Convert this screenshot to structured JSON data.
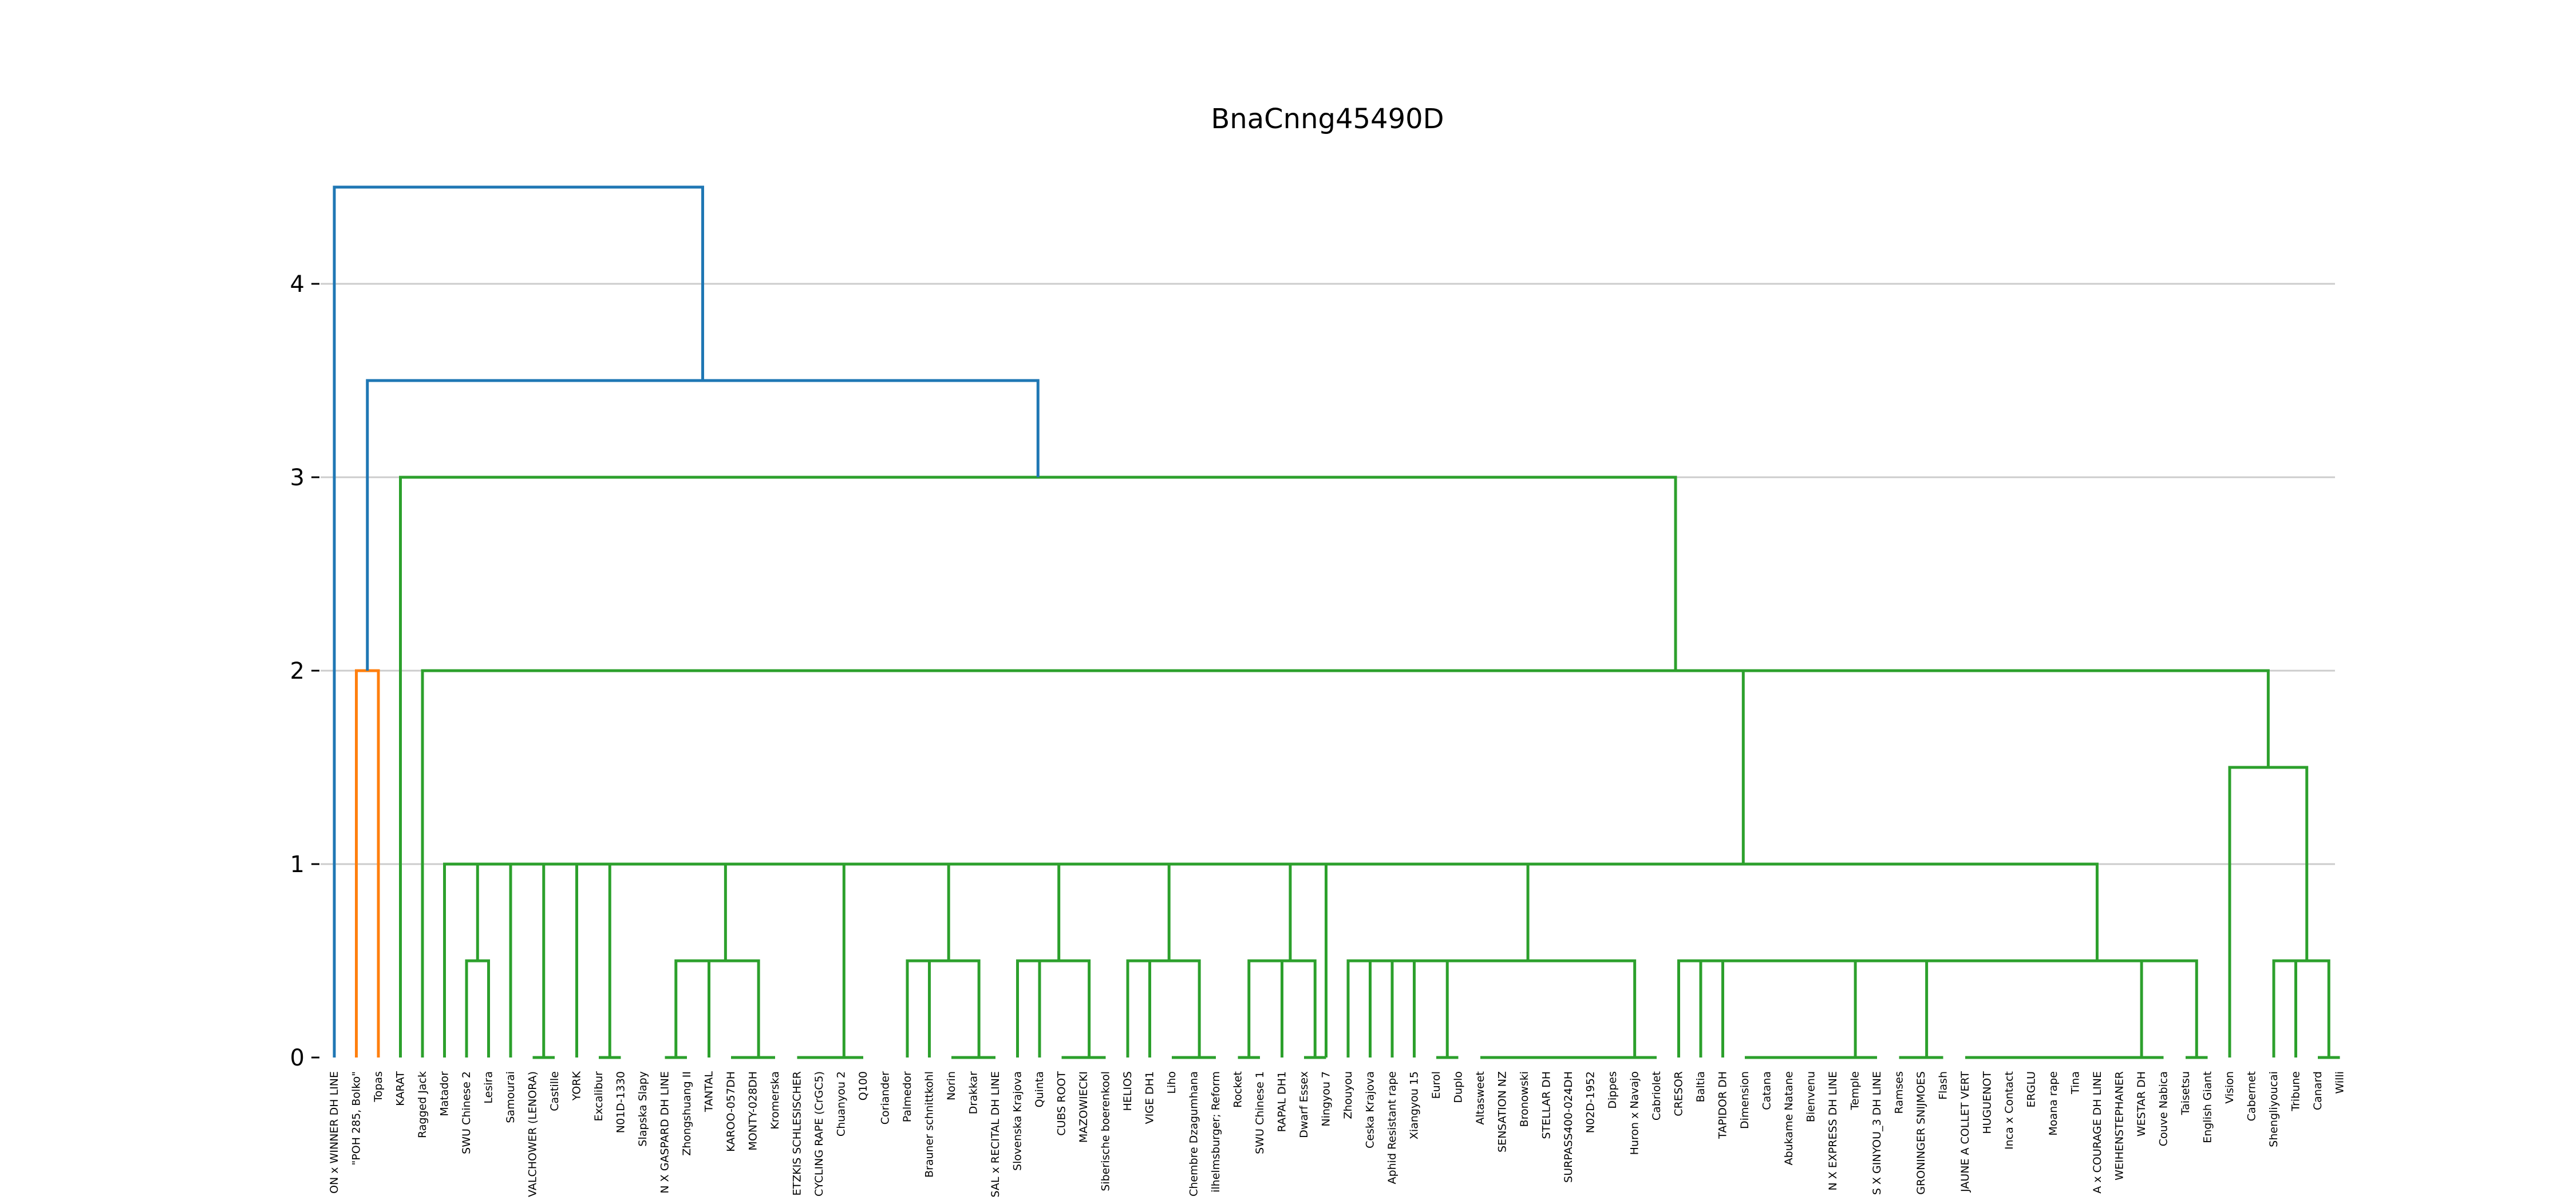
{
  "chart_data": {
    "type": "dendrogram",
    "title": "BnaCnng45490D",
    "xlabel": "",
    "ylabel": "",
    "ylim": [
      0,
      4.5
    ],
    "yticks": [
      "0",
      "1",
      "2",
      "3",
      "4"
    ],
    "grid": "horizontal",
    "colors": {
      "blue": "#1f77b4",
      "orange": "#ff7f0e",
      "green": "#2ca02c"
    },
    "leaves": [
      "ON x WINNER DH LINE",
      "\"POH 285, Bolko\"",
      "Topas",
      "KARAT",
      "Ragged Jack",
      "Matador",
      "SWU Chinese 2",
      "Lesira",
      "Samourai",
      "VALCHOWER (LENORA)",
      "Castille",
      "YORK",
      "Excalibur",
      "N01D-1330",
      "Slapska Slapy",
      "N X GASPARD DH LINE",
      "Zhongshuang II",
      "TANTAL",
      "KAROO-057DH",
      "MONTY-028DH",
      "Kromerska",
      "ETZKIS SCHLESISCHER",
      "CYCLING RAPE (CrGC5)",
      "Chuanyou 2",
      "Q100",
      "Coriander",
      "Palmedor",
      "Brauner schnittkohl",
      "Norin",
      "Drakkar",
      "SAL x RECITAL DH LINE",
      "Slovenska Krajova",
      "Quinta",
      "CUBS ROOT",
      "MAZOWIECKI",
      "Siberische boerenkool",
      "HELIOS",
      "VIGE DH1",
      "Liho",
      "Chembre Dzagumhana",
      "ilhelmsburger; Reform",
      "Rocket",
      "SWU Chinese 1",
      "RAPAL DH1",
      "Dwarf Essex",
      "Ningyou 7",
      "Zhouyou",
      "Ceska Krajova",
      "Aphid Resistant rape",
      "Xiangyou 15",
      "Eurol",
      "Duplo",
      "Altasweet",
      "SENSATION NZ",
      "Bronowski",
      "STELLAR DH",
      "SURPASS400-024DH",
      "N02D-1952",
      "Dippes",
      "Huron x Navajo",
      "Cabriolet",
      "CRESOR",
      "Baltia",
      "TAPIDOR DH",
      "Dimension",
      "Catana",
      "Abukame Natane",
      "Bienvenu",
      "N X EXPRESS DH LINE",
      "Temple",
      "S X GINYOU_3 DH LINE",
      "Ramses",
      "GRONINGER SNIJMOES",
      "Flash",
      "JAUNE A COLLET VERT",
      "HUGUENOT",
      "Inca x Contact",
      "ERGLU",
      "Moana rape",
      "Tina",
      "A x COURAGE DH LINE",
      "WEIHENSTEPHANER",
      "WESTAR DH",
      "Couve Nabica",
      "Taisetsu",
      "English Giant",
      "Vision",
      "Cabernet",
      "Shengliyoucai",
      "Tribune",
      "Canard",
      "Willi"
    ],
    "merges": [
      [
        0,
        1.0,
        0.5,
        "green"
      ],
      [
        0,
        1.0,
        0.5,
        "green"
      ],
      [
        0,
        1.0,
        0.5,
        "green"
      ],
      [
        0,
        2.0,
        0.5,
        "green"
      ],
      [
        0,
        2.0,
        1.0,
        "green"
      ],
      [
        0,
        2.0,
        2.0,
        "green"
      ],
      [
        0,
        2.0,
        0.5,
        "green"
      ],
      [
        0,
        1.0,
        0.5,
        "green"
      ],
      [
        0,
        3.0,
        0.5,
        "green"
      ],
      [
        0,
        4.0,
        0.5,
        "green"
      ],
      [
        0,
        3.0,
        0.5,
        "green"
      ],
      [
        0,
        4.0,
        0.5,
        "green"
      ],
      [
        0,
        5.0,
        0.5,
        "green"
      ],
      [
        0,
        6.0,
        0.5,
        "green"
      ],
      [
        0,
        7.0,
        0.5,
        "green"
      ],
      [
        0,
        8.0,
        0.5,
        "green"
      ],
      [
        0,
        9.0,
        0.5,
        "green"
      ],
      [
        0,
        10.0,
        0.5,
        "green"
      ],
      [
        0,
        11.0,
        0.5,
        "green"
      ],
      [
        0,
        12.0,
        0.5,
        "green"
      ],
      [
        0,
        13.0,
        0.5,
        "green"
      ],
      [
        0,
        14.0,
        0.5,
        "green"
      ],
      [
        0,
        15.0,
        0.5,
        "green"
      ],
      [
        0,
        16.0,
        0.5,
        "green"
      ],
      [
        0,
        1.0,
        0.5,
        "green"
      ],
      [
        0,
        2.0,
        0.5,
        "green"
      ],
      [
        0,
        3.0,
        0.5,
        "green"
      ],
      [
        0,
        4.0,
        0.5,
        "green"
      ],
      [
        0,
        5.0,
        0.5,
        "green"
      ],
      [
        0,
        6.0,
        0.5,
        "green"
      ],
      [
        0,
        7.0,
        0.5,
        "green"
      ],
      [
        0,
        8.0,
        0.5,
        "green"
      ],
      [
        0,
        9.0,
        0.5,
        "green"
      ],
      [
        0,
        1.0,
        0.5,
        "green"
      ],
      [
        0,
        2.0,
        0.5,
        "green"
      ],
      [
        0,
        3.0,
        0.5,
        "green"
      ],
      [
        0,
        4.0,
        0.5,
        "green"
      ],
      [
        0,
        5.0,
        0.5,
        "green"
      ],
      [
        0,
        1.0,
        0.5,
        "green"
      ],
      [
        0,
        2.0,
        0.5,
        "green"
      ],
      [
        0,
        3.0,
        0.5,
        "green"
      ],
      [
        0,
        4.0,
        0.5,
        "green"
      ],
      [
        0,
        5.0,
        0.5,
        "green"
      ],
      [
        0,
        6.0,
        0.5,
        "green"
      ],
      [
        0,
        7.0,
        0.5,
        "green"
      ],
      [
        0,
        8.0,
        0.5,
        "green"
      ],
      [
        0,
        9.0,
        0.5,
        "green"
      ],
      [
        0,
        10.0,
        0.5,
        "green"
      ],
      [
        0,
        1.0,
        0.5,
        "green"
      ],
      [
        0,
        2.0,
        0.5,
        "green"
      ],
      [
        0,
        3.0,
        0.5,
        "green"
      ],
      [
        0,
        4.0,
        0.5,
        "green"
      ],
      [
        0,
        1.0,
        0.5,
        "green"
      ],
      [
        0,
        2.0,
        0.5,
        "green"
      ],
      [
        0,
        3.0,
        0.5,
        "green"
      ],
      [
        0,
        4.0,
        0.5,
        "green"
      ],
      [
        0,
        5.0,
        0.5,
        "green"
      ],
      [
        0,
        6.0,
        0.5,
        "green"
      ],
      [
        0,
        7.0,
        0.5,
        "green"
      ],
      [
        0,
        1.0,
        0.5,
        "green"
      ],
      [
        0,
        2.0,
        0.5,
        "green"
      ],
      [
        0,
        3.0,
        0.5,
        "green"
      ],
      [
        0,
        1.0,
        0.5,
        "green"
      ],
      [
        0,
        2.0,
        0.5,
        "green"
      ],
      [
        0,
        3.0,
        0.5,
        "green"
      ],
      [
        0,
        4.0,
        0.5,
        "green"
      ],
      [
        0,
        5.0,
        0.5,
        "green"
      ],
      [
        0,
        6.0,
        0.5,
        "green"
      ],
      [
        0,
        7.0,
        0.5,
        "green"
      ],
      [
        0,
        8.0,
        0.5,
        "green"
      ],
      [
        0,
        9.0,
        0.5,
        "green"
      ],
      [
        0,
        10.0,
        0.5,
        "green"
      ],
      [
        0,
        11.0,
        0.5,
        "green"
      ],
      [
        0,
        12.0,
        0.5,
        "green"
      ],
      [
        0,
        13.0,
        0.5,
        "green"
      ],
      [
        0,
        14.0,
        0.5,
        "green"
      ],
      [
        0,
        15.0,
        0.5,
        "green"
      ],
      [
        0,
        16.0,
        0.5,
        "green"
      ],
      [
        0,
        17.0,
        0.5,
        "green"
      ],
      [
        0,
        18.0,
        0.5,
        "green"
      ],
      [
        0,
        19.0,
        0.5,
        "green"
      ],
      [
        0,
        20.0,
        0.5,
        "green"
      ],
      [
        0,
        21.0,
        0.5,
        "green"
      ],
      [
        0,
        22.0,
        0.5,
        "green"
      ],
      [
        0,
        23.0,
        0.5,
        "green"
      ],
      [
        0,
        1.0,
        0.5,
        "green"
      ],
      [
        0,
        2.0,
        0.5,
        "green"
      ],
      [
        0,
        3.0,
        0.5,
        "green"
      ],
      [
        0,
        4.0,
        0.5,
        "green"
      ],
      [
        0,
        5.0,
        0.5,
        "green"
      ],
      [
        0,
        6.0,
        0.5,
        "green"
      ]
    ]
  }
}
